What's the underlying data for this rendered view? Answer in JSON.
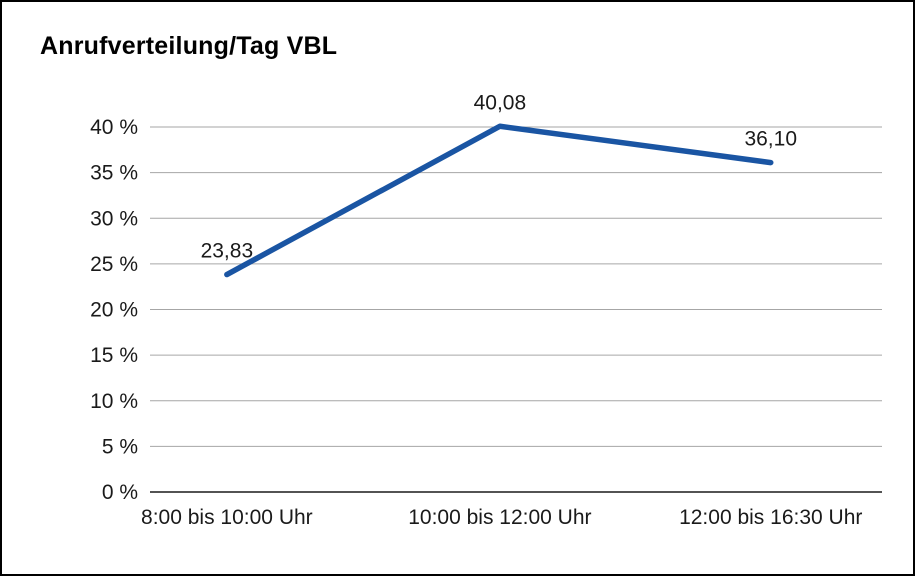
{
  "chart_data": {
    "type": "line",
    "title": "Anrufverteilung/Tag VBL",
    "categories": [
      "8:00 bis 10:00 Uhr",
      "10:00 bis 12:00 Uhr",
      "12:00 bis 16:30 Uhr"
    ],
    "values": [
      23.83,
      40.08,
      36.1
    ],
    "value_labels": [
      "23,83",
      "40,08",
      "36,10"
    ],
    "y_ticks": [
      {
        "value": 0,
        "label": "0 %"
      },
      {
        "value": 5,
        "label": "5 %"
      },
      {
        "value": 10,
        "label": "10 %"
      },
      {
        "value": 15,
        "label": "15 %"
      },
      {
        "value": 20,
        "label": "20 %"
      },
      {
        "value": 25,
        "label": "25 %"
      },
      {
        "value": 30,
        "label": "30 %"
      },
      {
        "value": 35,
        "label": "35 %"
      },
      {
        "value": 40,
        "label": "40 %"
      }
    ],
    "ylim": [
      0,
      40
    ],
    "grid": true,
    "legend": "none",
    "colors": {
      "line": "#1a55a3",
      "grid": "#a6a6a6",
      "axis": "#1a1a1a",
      "text": "#1a1a1a"
    }
  }
}
